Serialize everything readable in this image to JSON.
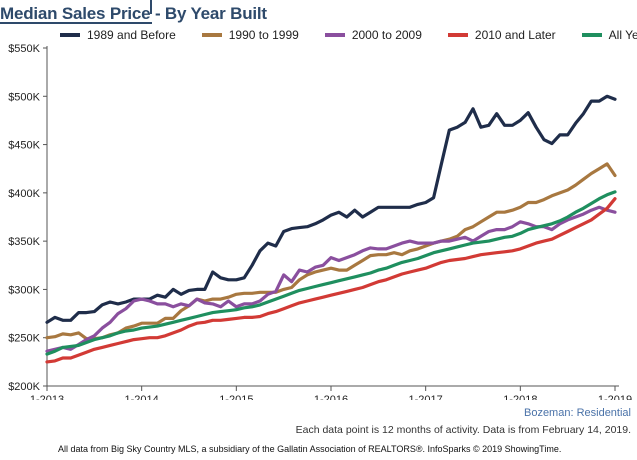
{
  "chart_data": {
    "type": "line",
    "title": "Median Sales Price - By Year Built",
    "x": [
      "2013-01",
      "2013-02",
      "2013-03",
      "2013-04",
      "2013-05",
      "2013-06",
      "2013-07",
      "2013-08",
      "2013-09",
      "2013-10",
      "2013-11",
      "2013-12",
      "2014-01",
      "2014-02",
      "2014-03",
      "2014-04",
      "2014-05",
      "2014-06",
      "2014-07",
      "2014-08",
      "2014-09",
      "2014-10",
      "2014-11",
      "2014-12",
      "2015-01",
      "2015-02",
      "2015-03",
      "2015-04",
      "2015-05",
      "2015-06",
      "2015-07",
      "2015-08",
      "2015-09",
      "2015-10",
      "2015-11",
      "2015-12",
      "2016-01",
      "2016-02",
      "2016-03",
      "2016-04",
      "2016-05",
      "2016-06",
      "2016-07",
      "2016-08",
      "2016-09",
      "2016-10",
      "2016-11",
      "2016-12",
      "2017-01",
      "2017-02",
      "2017-03",
      "2017-04",
      "2017-05",
      "2017-06",
      "2017-07",
      "2017-08",
      "2017-09",
      "2017-10",
      "2017-11",
      "2017-12",
      "2018-01",
      "2018-02",
      "2018-03",
      "2018-04",
      "2018-05",
      "2018-06",
      "2018-07",
      "2018-08",
      "2018-09",
      "2018-10",
      "2018-11",
      "2018-12",
      "2019-01"
    ],
    "x_tick_labels": [
      "1-2013",
      "1-2014",
      "1-2015",
      "1-2016",
      "1-2017",
      "1-2018",
      "1-2019"
    ],
    "y_tick_labels": [
      "$200K",
      "$250K",
      "$300K",
      "$350K",
      "$400K",
      "$450K",
      "$500K",
      "$550K"
    ],
    "ylim": [
      200000,
      550000
    ],
    "y_ticks": [
      200000,
      250000,
      300000,
      350000,
      400000,
      450000,
      500000,
      550000
    ],
    "grid": false,
    "legend_position": "top",
    "series": [
      {
        "name": "1989 and Before",
        "color": "#1f2d4a",
        "values": [
          266000,
          271000,
          268000,
          268000,
          276000,
          276000,
          277000,
          284000,
          287000,
          285000,
          287000,
          290000,
          290000,
          290000,
          294000,
          292000,
          300000,
          295000,
          299000,
          300000,
          300000,
          318000,
          312000,
          310000,
          310000,
          312000,
          325000,
          340000,
          348000,
          345000,
          360000,
          363000,
          364000,
          365000,
          368000,
          372000,
          377000,
          380000,
          375000,
          382000,
          375000,
          380000,
          385000,
          385000,
          385000,
          385000,
          385000,
          388000,
          390000,
          395000,
          430000,
          465000,
          468000,
          473000,
          487000,
          468000,
          470000,
          482000,
          470000,
          470000,
          475000,
          483000,
          468000,
          455000,
          451000,
          460000,
          460000,
          472000,
          482000,
          495000,
          495000,
          500000,
          497000
        ]
      },
      {
        "name": "1990 to 1999",
        "color": "#a87840",
        "values": [
          250000,
          251000,
          254000,
          253000,
          255000,
          249000,
          249000,
          250000,
          253000,
          255000,
          260000,
          262000,
          265000,
          265000,
          265000,
          270000,
          270000,
          278000,
          283000,
          290000,
          288000,
          290000,
          290000,
          292000,
          295000,
          296000,
          296000,
          297000,
          297000,
          297000,
          300000,
          302000,
          310000,
          315000,
          318000,
          320000,
          322000,
          320000,
          320000,
          325000,
          330000,
          335000,
          336000,
          336000,
          338000,
          336000,
          340000,
          342000,
          345000,
          348000,
          350000,
          352000,
          355000,
          362000,
          365000,
          370000,
          375000,
          380000,
          380000,
          382000,
          385000,
          390000,
          390000,
          393000,
          397000,
          400000,
          403000,
          408000,
          414000,
          420000,
          425000,
          430000,
          418000
        ]
      },
      {
        "name": "2000 to 2009",
        "color": "#8a4f9e",
        "values": [
          236000,
          238000,
          240000,
          238000,
          243000,
          248000,
          252000,
          260000,
          266000,
          275000,
          280000,
          288000,
          290000,
          288000,
          285000,
          285000,
          282000,
          285000,
          283000,
          290000,
          286000,
          285000,
          282000,
          288000,
          282000,
          285000,
          285000,
          288000,
          295000,
          298000,
          315000,
          308000,
          320000,
          318000,
          323000,
          325000,
          333000,
          330000,
          333000,
          336000,
          340000,
          343000,
          342000,
          342000,
          345000,
          348000,
          350000,
          348000,
          348000,
          348000,
          350000,
          350000,
          352000,
          354000,
          350000,
          355000,
          360000,
          362000,
          362000,
          365000,
          370000,
          368000,
          365000,
          365000,
          362000,
          368000,
          372000,
          375000,
          378000,
          382000,
          385000,
          382000,
          380000
        ]
      },
      {
        "name": "2010 and Later",
        "color": "#d23a35",
        "values": [
          225000,
          226000,
          229000,
          229000,
          232000,
          235000,
          238000,
          240000,
          242000,
          244000,
          246000,
          248000,
          249000,
          250000,
          250000,
          252000,
          255000,
          258000,
          262000,
          265000,
          266000,
          268000,
          268000,
          269000,
          270000,
          271000,
          271000,
          272000,
          275000,
          277000,
          280000,
          283000,
          286000,
          288000,
          290000,
          292000,
          294000,
          296000,
          298000,
          300000,
          302000,
          305000,
          308000,
          310000,
          313000,
          316000,
          318000,
          320000,
          322000,
          325000,
          328000,
          330000,
          331000,
          332000,
          334000,
          336000,
          337000,
          338000,
          339000,
          340000,
          342000,
          345000,
          348000,
          350000,
          352000,
          356000,
          360000,
          364000,
          368000,
          372000,
          378000,
          384000,
          394000
        ]
      },
      {
        "name": "All Years",
        "color": "#1f8f5f",
        "values": [
          233000,
          236000,
          240000,
          241000,
          242000,
          245000,
          248000,
          250000,
          252000,
          255000,
          257000,
          258000,
          260000,
          261000,
          262000,
          264000,
          266000,
          268000,
          270000,
          272000,
          274000,
          276000,
          277000,
          278000,
          279000,
          281000,
          282000,
          284000,
          287000,
          290000,
          293000,
          296000,
          299000,
          301000,
          303000,
          305000,
          307000,
          309000,
          311000,
          313000,
          315000,
          317000,
          320000,
          322000,
          325000,
          328000,
          330000,
          332000,
          335000,
          338000,
          340000,
          342000,
          344000,
          346000,
          348000,
          349000,
          350000,
          352000,
          354000,
          355000,
          358000,
          362000,
          364000,
          366000,
          368000,
          371000,
          375000,
          380000,
          384000,
          389000,
          394000,
          398000,
          401000
        ]
      }
    ]
  },
  "location_label": "Bozeman: Residential",
  "note": "Each data point is 12 months of activity. Data is from February 14, 2019.",
  "source": "All data from Big Sky Country MLS, a subsidiary of the Gallatin Association of REALTORS®. InfoSparks © 2019 ShowingTime."
}
